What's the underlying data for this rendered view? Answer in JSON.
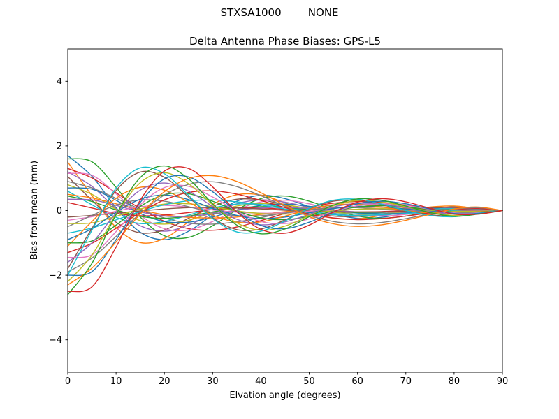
{
  "chart_data": {
    "type": "line",
    "suptitle": "STXSA1000        NONE",
    "title": "Delta Antenna Phase Biases: GPS-L5",
    "xlabel": "Elvation angle (degrees)",
    "ylabel": "Bias from mean (mm)",
    "xlim": [
      0,
      90
    ],
    "ylim": [
      -5,
      5
    ],
    "xticks": [
      0,
      10,
      20,
      30,
      40,
      50,
      60,
      70,
      80,
      90
    ],
    "xtick_labels": [
      "0",
      "10",
      "20",
      "30",
      "40",
      "50",
      "60",
      "70",
      "80",
      "90"
    ],
    "yticks": [
      -4,
      -2,
      0,
      2,
      4
    ],
    "ytick_labels": [
      "−4",
      "−2",
      "0",
      "2",
      "4"
    ],
    "grid": false,
    "legend": false,
    "x": [
      0,
      5,
      10,
      15,
      20,
      25,
      30,
      35,
      40,
      45,
      50,
      55,
      60,
      65,
      70,
      75,
      80,
      85,
      90
    ],
    "series": [
      {
        "color": "#1f77b4",
        "values": [
          1.7,
          1.06,
          0.09,
          -0.67,
          -0.9,
          -0.64,
          -0.14,
          0.29,
          0.47,
          0.37,
          0.12,
          -0.11,
          -0.24,
          -0.21,
          -0.09,
          0.04,
          0.12,
          0.07,
          0.0
        ]
      },
      {
        "color": "#ff7f0e",
        "values": [
          1.5,
          0.46,
          -0.52,
          -0.99,
          -0.86,
          -0.35,
          0.19,
          0.49,
          0.48,
          0.24,
          -0.05,
          -0.24,
          -0.26,
          -0.15,
          0.0,
          0.11,
          0.14,
          0.06,
          0.0
        ]
      },
      {
        "color": "#2ca02c",
        "values": [
          1.6,
          1.51,
          0.72,
          -0.2,
          -0.78,
          -0.83,
          -0.47,
          0.02,
          0.37,
          0.45,
          0.29,
          0.03,
          -0.17,
          -0.24,
          -0.17,
          -0.04,
          0.07,
          0.08,
          0.0
        ]
      },
      {
        "color": "#d62728",
        "values": [
          1.3,
          1.01,
          0.55,
          0.06,
          -0.33,
          -0.56,
          -0.61,
          -0.51,
          -0.31,
          -0.09,
          0.11,
          0.23,
          0.28,
          0.25,
          0.17,
          0.07,
          -0.03,
          -0.06,
          0.0
        ]
      },
      {
        "color": "#9467bd",
        "values": [
          1.2,
          0.75,
          0.06,
          -0.47,
          -0.64,
          -0.45,
          -0.1,
          0.21,
          0.33,
          0.26,
          0.09,
          -0.08,
          -0.17,
          -0.15,
          -0.06,
          0.03,
          0.08,
          0.05,
          0.0
        ]
      },
      {
        "color": "#8c564b",
        "values": [
          1.05,
          0.32,
          -0.36,
          -0.69,
          -0.6,
          -0.24,
          0.13,
          0.35,
          0.33,
          0.17,
          -0.04,
          -0.17,
          -0.18,
          -0.11,
          0.0,
          0.08,
          0.1,
          0.04,
          0.0
        ]
      },
      {
        "color": "#e377c2",
        "values": [
          1.15,
          1.09,
          0.52,
          -0.15,
          -0.56,
          -0.6,
          -0.34,
          0.02,
          0.27,
          0.32,
          0.21,
          0.02,
          -0.12,
          -0.17,
          -0.12,
          -0.03,
          0.05,
          0.06,
          0.0
        ]
      },
      {
        "color": "#7f7f7f",
        "values": [
          0.9,
          0.7,
          0.38,
          0.04,
          -0.23,
          -0.39,
          -0.42,
          -0.35,
          -0.22,
          -0.06,
          0.07,
          0.16,
          0.19,
          0.17,
          0.12,
          0.05,
          -0.02,
          -0.04,
          0.0
        ]
      },
      {
        "color": "#bcbd22",
        "values": [
          0.8,
          0.5,
          0.04,
          -0.31,
          -0.42,
          -0.3,
          -0.07,
          0.14,
          0.22,
          0.18,
          0.06,
          -0.05,
          -0.11,
          -0.1,
          -0.04,
          0.02,
          0.06,
          0.03,
          0.0
        ]
      },
      {
        "color": "#17becf",
        "values": [
          0.6,
          0.18,
          -0.21,
          -0.4,
          -0.34,
          -0.14,
          0.08,
          0.2,
          0.19,
          0.1,
          -0.02,
          -0.1,
          -0.1,
          -0.06,
          0.0,
          0.04,
          0.06,
          0.02,
          0.0
        ]
      },
      {
        "color": "#1f77b4",
        "values": [
          0.7,
          0.66,
          0.32,
          -0.09,
          -0.34,
          -0.36,
          -0.2,
          0.01,
          0.16,
          0.2,
          0.13,
          0.01,
          -0.07,
          -0.1,
          -0.08,
          -0.02,
          0.03,
          0.03,
          0.0
        ]
      },
      {
        "color": "#ff7f0e",
        "values": [
          0.5,
          0.39,
          0.21,
          0.02,
          -0.13,
          -0.21,
          -0.23,
          -0.2,
          -0.12,
          -0.03,
          0.04,
          0.09,
          0.11,
          0.1,
          0.07,
          0.03,
          -0.01,
          -0.02,
          0.0
        ]
      },
      {
        "color": "#2ca02c",
        "values": [
          0.45,
          0.28,
          0.02,
          -0.18,
          -0.24,
          -0.17,
          -0.04,
          0.08,
          0.12,
          0.1,
          0.03,
          -0.03,
          -0.06,
          -0.06,
          -0.02,
          0.01,
          0.03,
          0.02,
          0.0
        ]
      },
      {
        "color": "#d62728",
        "values": [
          0.25,
          0.08,
          -0.09,
          -0.16,
          -0.14,
          -0.06,
          0.03,
          0.08,
          0.08,
          0.04,
          -0.01,
          -0.04,
          -0.04,
          -0.03,
          0.0,
          0.02,
          0.02,
          0.01,
          0.0
        ]
      },
      {
        "color": "#9467bd",
        "values": [
          0.35,
          0.33,
          0.16,
          -0.04,
          -0.17,
          -0.18,
          -0.1,
          0.01,
          0.08,
          0.1,
          0.06,
          0.01,
          -0.04,
          -0.05,
          -0.04,
          -0.01,
          0.02,
          0.02,
          0.0
        ]
      },
      {
        "color": "#8c564b",
        "values": [
          -0.2,
          -0.15,
          -0.08,
          -0.01,
          0.05,
          0.09,
          0.09,
          0.08,
          0.05,
          0.01,
          -0.02,
          -0.04,
          -0.04,
          -0.04,
          -0.03,
          -0.01,
          0.0,
          0.01,
          0.0
        ]
      },
      {
        "color": "#e377c2",
        "values": [
          -0.3,
          -0.19,
          -0.02,
          0.12,
          0.16,
          0.11,
          0.02,
          -0.05,
          -0.08,
          -0.07,
          -0.02,
          0.02,
          0.04,
          0.04,
          0.02,
          -0.01,
          -0.02,
          -0.01,
          0.0
        ]
      },
      {
        "color": "#7f7f7f",
        "values": [
          -0.5,
          -0.15,
          0.17,
          0.33,
          0.29,
          0.12,
          -0.06,
          -0.16,
          -0.16,
          -0.08,
          0.02,
          0.08,
          0.09,
          0.05,
          0.0,
          -0.04,
          -0.05,
          -0.02,
          0.0
        ]
      },
      {
        "color": "#bcbd22",
        "values": [
          -0.4,
          -0.38,
          -0.18,
          0.05,
          0.2,
          0.21,
          0.12,
          -0.01,
          -0.09,
          -0.11,
          -0.07,
          -0.01,
          0.04,
          0.06,
          0.04,
          0.01,
          -0.02,
          -0.02,
          0.0
        ]
      },
      {
        "color": "#17becf",
        "values": [
          -0.7,
          -0.54,
          -0.29,
          -0.03,
          0.18,
          0.3,
          0.33,
          0.27,
          0.17,
          0.05,
          -0.06,
          -0.13,
          -0.15,
          -0.13,
          -0.09,
          -0.04,
          0.01,
          0.03,
          0.0
        ]
      },
      {
        "color": "#1f77b4",
        "values": [
          -0.9,
          -0.56,
          -0.05,
          0.35,
          0.48,
          0.34,
          0.07,
          -0.15,
          -0.25,
          -0.2,
          -0.07,
          0.06,
          0.13,
          0.11,
          0.05,
          -0.02,
          -0.06,
          -0.04,
          0.0
        ]
      },
      {
        "color": "#ff7f0e",
        "values": [
          -1.1,
          -0.34,
          0.38,
          0.72,
          0.63,
          0.26,
          -0.14,
          -0.36,
          -0.35,
          -0.17,
          0.04,
          0.18,
          0.19,
          0.11,
          0.0,
          -0.08,
          -0.1,
          -0.04,
          0.0
        ]
      },
      {
        "color": "#2ca02c",
        "values": [
          -1.0,
          -0.94,
          -0.45,
          0.13,
          0.49,
          0.52,
          0.29,
          -0.01,
          -0.23,
          -0.28,
          -0.18,
          -0.02,
          0.11,
          0.15,
          0.11,
          0.03,
          -0.05,
          -0.05,
          0.0
        ]
      },
      {
        "color": "#d62728",
        "values": [
          -1.3,
          -1.01,
          -0.55,
          -0.06,
          0.33,
          0.56,
          0.61,
          0.51,
          0.31,
          0.09,
          -0.11,
          -0.23,
          -0.28,
          -0.25,
          -0.17,
          -0.07,
          0.03,
          0.06,
          0.0
        ]
      },
      {
        "color": "#9467bd",
        "values": [
          -1.6,
          -1.0,
          -0.08,
          0.63,
          0.85,
          0.6,
          0.13,
          -0.27,
          -0.44,
          -0.35,
          -0.12,
          0.11,
          0.22,
          0.2,
          0.09,
          -0.03,
          -0.11,
          -0.07,
          0.0
        ]
      },
      {
        "color": "#8c564b",
        "values": [
          -1.8,
          -0.55,
          0.62,
          1.19,
          1.03,
          0.42,
          -0.23,
          -0.59,
          -0.57,
          -0.29,
          0.06,
          0.29,
          0.31,
          0.18,
          0.0,
          -0.13,
          -0.17,
          -0.07,
          0.0
        ]
      },
      {
        "color": "#e377c2",
        "values": [
          -1.45,
          -1.37,
          -0.65,
          0.18,
          0.71,
          0.75,
          0.42,
          -0.02,
          -0.34,
          -0.4,
          -0.26,
          -0.03,
          0.15,
          0.21,
          0.16,
          0.04,
          -0.07,
          -0.07,
          0.0
        ]
      },
      {
        "color": "#7f7f7f",
        "values": [
          -1.9,
          -1.47,
          -0.8,
          -0.09,
          0.48,
          0.81,
          0.89,
          0.74,
          0.46,
          0.13,
          -0.15,
          -0.34,
          -0.41,
          -0.37,
          -0.25,
          -0.1,
          0.04,
          0.09,
          0.0
        ]
      },
      {
        "color": "#bcbd22",
        "values": [
          -2.2,
          -1.38,
          -0.11,
          0.86,
          1.17,
          0.83,
          0.18,
          -0.38,
          -0.61,
          -0.48,
          -0.16,
          0.15,
          0.31,
          0.27,
          0.12,
          -0.05,
          -0.15,
          -0.09,
          0.0
        ]
      },
      {
        "color": "#17becf",
        "values": [
          -2.0,
          -0.61,
          0.69,
          1.32,
          1.14,
          0.47,
          -0.25,
          -0.66,
          -0.64,
          -0.32,
          0.07,
          0.32,
          0.35,
          0.2,
          0.0,
          -0.15,
          -0.19,
          -0.08,
          0.0
        ]
      },
      {
        "color": "#1f77b4",
        "values": [
          -2.0,
          -1.89,
          -0.9,
          0.25,
          0.98,
          1.04,
          0.58,
          -0.03,
          -0.46,
          -0.56,
          -0.36,
          -0.04,
          0.21,
          0.29,
          0.21,
          0.05,
          -0.09,
          -0.09,
          0.0
        ]
      },
      {
        "color": "#ff7f0e",
        "values": [
          -2.3,
          -1.78,
          -0.97,
          -0.11,
          0.58,
          0.99,
          1.08,
          0.9,
          0.55,
          0.16,
          -0.19,
          -0.41,
          -0.49,
          -0.44,
          -0.3,
          -0.12,
          0.05,
          0.11,
          0.0
        ]
      },
      {
        "color": "#2ca02c",
        "values": [
          -2.6,
          -1.63,
          -0.13,
          1.02,
          1.38,
          0.98,
          0.21,
          -0.45,
          -0.72,
          -0.57,
          -0.19,
          0.17,
          0.36,
          0.32,
          0.14,
          -0.06,
          -0.18,
          -0.11,
          0.0
        ]
      },
      {
        "color": "#d62728",
        "values": [
          -2.5,
          -2.36,
          -1.13,
          0.32,
          1.22,
          1.3,
          0.73,
          -0.04,
          -0.58,
          -0.7,
          -0.45,
          -0.05,
          0.26,
          0.37,
          0.27,
          0.07,
          -0.11,
          -0.11,
          0.0
        ]
      }
    ]
  }
}
